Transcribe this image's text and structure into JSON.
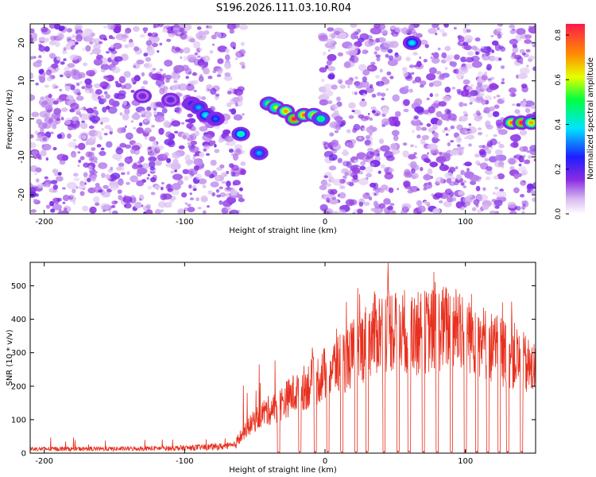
{
  "title": "S196.2026.111.03.10.R04",
  "chart_data": [
    {
      "type": "heatmap",
      "xlabel": "Height of straight line (km)",
      "ylabel": "Frequency (Hz)",
      "xlim": [
        -210,
        150
      ],
      "ylim": [
        -25,
        25
      ],
      "xticks": [
        -200,
        -100,
        0,
        100
      ],
      "yticks": [
        -20,
        -10,
        0,
        10,
        20
      ],
      "colorbar": {
        "label": "Normalized spectral amplitude",
        "range": [
          0,
          0.85
        ],
        "ticks": [
          "0.0",
          "0.2",
          "0.4",
          "0.6",
          "0.8"
        ],
        "tick_values": [
          0,
          0.2,
          0.4,
          0.6,
          0.8
        ]
      },
      "blank_bands_km": [
        [
          -58,
          -2
        ],
        [
          52,
          56
        ],
        [
          127,
          133
        ]
      ],
      "ridge": {
        "description_points": [
          {
            "x": -130,
            "y": 6,
            "amp": 0.18
          },
          {
            "x": -110,
            "y": 5,
            "amp": 0.2
          },
          {
            "x": -95,
            "y": 4,
            "amp": 0.25
          },
          {
            "x": -90,
            "y": 3,
            "amp": 0.35
          },
          {
            "x": -85,
            "y": 1,
            "amp": 0.4
          },
          {
            "x": -78,
            "y": 0,
            "amp": 0.3
          },
          {
            "x": -60,
            "y": -4,
            "amp": 0.45
          },
          {
            "x": -47,
            "y": -9,
            "amp": 0.35
          },
          {
            "x": -40,
            "y": 4,
            "amp": 0.55
          },
          {
            "x": -35,
            "y": 3,
            "amp": 0.6
          },
          {
            "x": -28,
            "y": 2,
            "amp": 0.7
          },
          {
            "x": -22,
            "y": 0,
            "amp": 0.85
          },
          {
            "x": -15,
            "y": 1,
            "amp": 0.75
          },
          {
            "x": -8,
            "y": 1,
            "amp": 0.65
          },
          {
            "x": -3,
            "y": 0,
            "amp": 0.5
          },
          {
            "x": 62,
            "y": 20,
            "amp": 0.4
          },
          {
            "x": 133,
            "y": -1,
            "amp": 0.75
          },
          {
            "x": 140,
            "y": -1,
            "amp": 0.85
          },
          {
            "x": 147,
            "y": -1,
            "amp": 0.7
          }
        ]
      }
    },
    {
      "type": "line",
      "xlabel": "Height of straight line (km)",
      "ylabel": "SNR (10 * v/v)",
      "xlim": [
        -210,
        150
      ],
      "ylim": [
        0,
        570
      ],
      "xticks": [
        -200,
        -100,
        0,
        100
      ],
      "yticks": [
        0,
        100,
        200,
        300,
        400,
        500
      ],
      "series": [
        {
          "color": "#e8301e",
          "envelope": [
            [
              -210,
              15
            ],
            [
              -150,
              15
            ],
            [
              -100,
              18
            ],
            [
              -80,
              22
            ],
            [
              -65,
              25
            ],
            [
              -55,
              90
            ],
            [
              -45,
              140
            ],
            [
              -35,
              160
            ],
            [
              -25,
              200
            ],
            [
              -15,
              230
            ],
            [
              -5,
              260
            ],
            [
              5,
              300
            ],
            [
              15,
              330
            ],
            [
              25,
              370
            ],
            [
              35,
              420
            ],
            [
              45,
              440
            ],
            [
              55,
              430
            ],
            [
              65,
              420
            ],
            [
              75,
              430
            ],
            [
              85,
              440
            ],
            [
              95,
              450
            ],
            [
              105,
              420
            ],
            [
              115,
              380
            ],
            [
              125,
              360
            ],
            [
              135,
              340
            ],
            [
              145,
              300
            ],
            [
              150,
              280
            ]
          ],
          "dropouts_km": [
            -33,
            -18,
            -7,
            2,
            12,
            22,
            30,
            42,
            52,
            60,
            70,
            80,
            90,
            100,
            108,
            116,
            124,
            130,
            140
          ]
        }
      ]
    }
  ],
  "colors": {
    "line": "#e8301e"
  }
}
